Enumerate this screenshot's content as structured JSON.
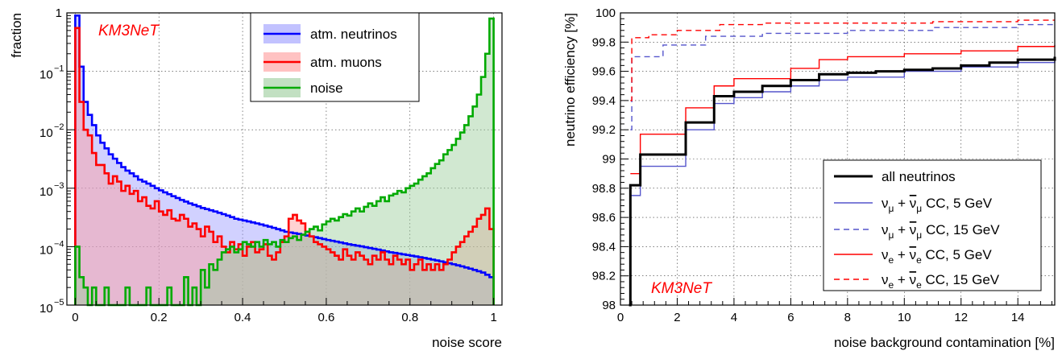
{
  "chart_data": [
    {
      "type": "histogram",
      "panel": "left",
      "watermark": "KM3NeT",
      "xlabel": "noise score",
      "ylabel": "fraction",
      "xlim": [
        -0.02,
        1.02
      ],
      "ylim": [
        1e-05,
        1
      ],
      "yscale": "log",
      "grid": true,
      "legend_position": "top-right",
      "x_ticks": [
        0,
        0.2,
        0.4,
        0.6,
        0.8,
        1
      ],
      "x_tick_labels": [
        "0",
        "0.2",
        "0.4",
        "0.6",
        "0.8",
        "1"
      ],
      "y_ticks": [
        1e-05,
        0.0001,
        0.001,
        0.01,
        0.1,
        1
      ],
      "y_tick_labels": [
        {
          "base": "10",
          "exp": "−5"
        },
        {
          "base": "10",
          "exp": "−4"
        },
        {
          "base": "10",
          "exp": "−3"
        },
        {
          "base": "10",
          "exp": "−2"
        },
        {
          "base": "10",
          "exp": "−1"
        },
        {
          "base": "1",
          "exp": ""
        }
      ],
      "bins": {
        "start": 0,
        "width": 0.01,
        "count": 100
      },
      "series": [
        {
          "name": "atm. neutrinos",
          "line_color": "#0000ff",
          "fill_color": "#9999ff",
          "values": [
            0.9,
            0.12,
            0.03,
            0.018,
            0.012,
            0.008,
            0.006,
            0.0048,
            0.0038,
            0.0032,
            0.0027,
            0.0023,
            0.002,
            0.0018,
            0.0016,
            0.0014,
            0.0013,
            0.0012,
            0.0011,
            0.001,
            0.00092,
            0.00085,
            0.00079,
            0.00073,
            0.00068,
            0.00063,
            0.00059,
            0.00055,
            0.00052,
            0.00049,
            0.00046,
            0.00044,
            0.00042,
            0.0004,
            0.00038,
            0.00036,
            0.00034,
            0.00032,
            0.0003,
            0.00029,
            0.00028,
            0.00027,
            0.00026,
            0.00025,
            0.00024,
            0.00023,
            0.00022,
            0.00021,
            0.0002,
            0.00019,
            0.00018,
            0.000175,
            0.00017,
            0.000165,
            0.00016,
            0.000155,
            0.00015,
            0.000145,
            0.00014,
            0.000135,
            0.00013,
            0.000126,
            0.000122,
            0.000118,
            0.000114,
            0.00011,
            0.000107,
            0.000104,
            0.000101,
            9.8e-05,
            9.5e-05,
            9.2e-05,
            8.9e-05,
            8.6e-05,
            8.3e-05,
            8e-05,
            7.8e-05,
            7.6e-05,
            7.4e-05,
            7.2e-05,
            7e-05,
            6.8e-05,
            6.6e-05,
            6.4e-05,
            6.2e-05,
            6e-05,
            5.8e-05,
            5.6e-05,
            5.4e-05,
            5.2e-05,
            5e-05,
            4.8e-05,
            4.6e-05,
            4.4e-05,
            4.2e-05,
            4e-05,
            3.8e-05,
            3.6e-05,
            3.3e-05,
            3e-05
          ]
        },
        {
          "name": "atm. muons",
          "line_color": "#ff0000",
          "fill_color": "#ff9999",
          "values": [
            0.55,
            0.03,
            0.01,
            0.008,
            0.004,
            0.0025,
            0.0025,
            0.0018,
            0.0012,
            0.0016,
            0.0013,
            0.0009,
            0.0011,
            0.0008,
            0.0009,
            0.0006,
            0.0007,
            0.0005,
            0.00045,
            0.0006,
            0.0004,
            0.00035,
            0.00042,
            0.0003,
            0.00028,
            0.00035,
            0.0003,
            0.00022,
            0.00025,
            0.0002,
            0.00015,
            0.00022,
            0.00018,
            0.00012,
            0.00015,
            0.0001,
            8e-05,
            0.00012,
            9e-05,
            0.00011,
            7e-05,
            0.0001,
            0.00012,
            8e-05,
            9e-05,
            0.00011,
            7e-05,
            6e-05,
            8e-05,
            0.00012,
            0.00015,
            0.0003,
            0.00035,
            0.00028,
            0.00025,
            0.00018,
            0.00015,
            0.00012,
            0.00011,
            0.0001,
            9e-05,
            8e-05,
            7e-05,
            6e-05,
            9e-05,
            7e-05,
            6e-05,
            8e-05,
            7e-05,
            6e-05,
            5e-05,
            7e-05,
            6e-05,
            8e-05,
            6e-05,
            5e-05,
            7e-05,
            6e-05,
            5e-05,
            6e-05,
            4e-05,
            5e-05,
            6e-05,
            4e-05,
            5e-05,
            4e-05,
            5e-05,
            4e-05,
            5e-05,
            6e-05,
            8e-05,
            0.0001,
            0.00012,
            0.00015,
            0.00018,
            0.00022,
            0.0003,
            0.00035,
            0.00045,
            0.0002
          ]
        },
        {
          "name": "noise",
          "line_color": "#00aa00",
          "fill_color": "#99cc99",
          "values": [
            0.0001,
            3e-05,
            2e-05,
            1e-05,
            2e-05,
            1e-05,
            1e-05,
            2e-05,
            1e-05,
            1e-05,
            1e-05,
            1e-05,
            2e-05,
            1e-05,
            1e-05,
            1e-05,
            1e-05,
            2e-05,
            1e-05,
            1e-05,
            1e-05,
            1e-05,
            2e-05,
            1e-05,
            1e-05,
            1e-05,
            3e-05,
            1e-05,
            2e-05,
            1e-05,
            4e-05,
            2e-05,
            5e-05,
            4e-05,
            6e-05,
            8e-05,
            9e-05,
            0.0001,
            8e-05,
            9e-05,
            0.00012,
            0.00011,
            0.0001,
            0.00012,
            0.0001,
            0.00013,
            0.00011,
            0.00012,
            0.0001,
            0.00013,
            0.00012,
            0.00014,
            0.00015,
            0.00013,
            0.00016,
            0.00018,
            0.0002,
            0.00022,
            0.00019,
            0.00024,
            0.00027,
            0.0003,
            0.00028,
            0.00032,
            0.00036,
            0.00034,
            0.0004,
            0.00045,
            0.0004,
            0.00048,
            0.00055,
            0.0005,
            0.0006,
            0.0007,
            0.0006,
            0.00075,
            0.0008,
            0.0009,
            0.00085,
            0.001,
            0.0011,
            0.0012,
            0.0014,
            0.0016,
            0.0018,
            0.0022,
            0.0026,
            0.003,
            0.0038,
            0.0045,
            0.0055,
            0.007,
            0.009,
            0.012,
            0.017,
            0.025,
            0.04,
            0.08,
            0.2,
            0.8
          ]
        }
      ]
    },
    {
      "type": "line",
      "panel": "right",
      "watermark": "KM3NeT",
      "xlabel": "noise background contamination [%]",
      "ylabel": "neutrino efficiency [%]",
      "xlim": [
        0,
        15.3
      ],
      "ylim": [
        98,
        100
      ],
      "grid": true,
      "legend_position": "bottom-right",
      "x_ticks": [
        0,
        2,
        4,
        6,
        8,
        10,
        12,
        14
      ],
      "y_ticks": [
        98,
        98.2,
        98.4,
        98.6,
        98.8,
        99,
        99.2,
        99.4,
        99.6,
        99.8,
        100
      ],
      "y_tick_labels": [
        "98",
        "98.2",
        "98.4",
        "98.6",
        "98.8",
        "99",
        "99.2",
        "99.4",
        "99.6",
        "99.8",
        "100"
      ],
      "series": [
        {
          "name": "all neutrinos",
          "color": "#000000",
          "dashed": false,
          "width": 3,
          "x": [
            0.3,
            0.35,
            0.7,
            2.3,
            3.3,
            4,
            5,
            6,
            7,
            8,
            9,
            10,
            11,
            12,
            13,
            14,
            15.3
          ],
          "y": [
            98.0,
            98.82,
            99.03,
            99.25,
            99.43,
            99.46,
            99.5,
            99.54,
            99.58,
            99.59,
            99.6,
            99.61,
            99.62,
            99.64,
            99.66,
            99.68,
            99.7
          ]
        },
        {
          "name_parts": [
            "ν",
            "μ",
            " + ",
            "ν",
            "μ",
            " CC, 5 GeV"
          ],
          "color": "#5555cc",
          "dashed": false,
          "width": 1.4,
          "x": [
            0.35,
            0.7,
            2.3,
            3.3,
            4,
            5,
            6,
            7,
            8,
            10,
            12,
            14,
            15.3
          ],
          "y": [
            98.75,
            98.95,
            99.2,
            99.38,
            99.42,
            99.46,
            99.5,
            99.54,
            99.56,
            99.6,
            99.63,
            99.66,
            99.68
          ]
        },
        {
          "name_parts": [
            "ν",
            "μ",
            " + ",
            "ν",
            "μ",
            " CC, 15 GeV"
          ],
          "color": "#5555cc",
          "dashed": true,
          "width": 1.4,
          "x": [
            0.35,
            0.4,
            1.5,
            3,
            5,
            8,
            11,
            14,
            15.3
          ],
          "y": [
            99.2,
            99.7,
            99.78,
            99.84,
            99.86,
            99.88,
            99.9,
            99.92,
            99.92
          ]
        },
        {
          "name_parts": [
            "ν",
            "e",
            " + ",
            "ν",
            "e",
            " CC, 5 GeV"
          ],
          "color": "#ff0000",
          "dashed": false,
          "width": 1.4,
          "x": [
            0.35,
            0.7,
            2.3,
            3.3,
            4,
            6,
            7,
            8,
            10,
            12,
            14,
            15.3
          ],
          "y": [
            98.9,
            99.17,
            99.35,
            99.5,
            99.55,
            99.62,
            99.68,
            99.7,
            99.72,
            99.74,
            99.77,
            99.78
          ]
        },
        {
          "name_parts": [
            "ν",
            "e",
            " + ",
            "ν",
            "e",
            " CC, 15 GeV"
          ],
          "color": "#ff0000",
          "dashed": true,
          "width": 1.4,
          "x": [
            0.35,
            0.4,
            1,
            2,
            3.5,
            5,
            8,
            11,
            14,
            15.3
          ],
          "y": [
            99.4,
            99.83,
            99.85,
            99.88,
            99.92,
            99.93,
            99.93,
            99.94,
            99.95,
            99.95
          ]
        }
      ]
    }
  ]
}
